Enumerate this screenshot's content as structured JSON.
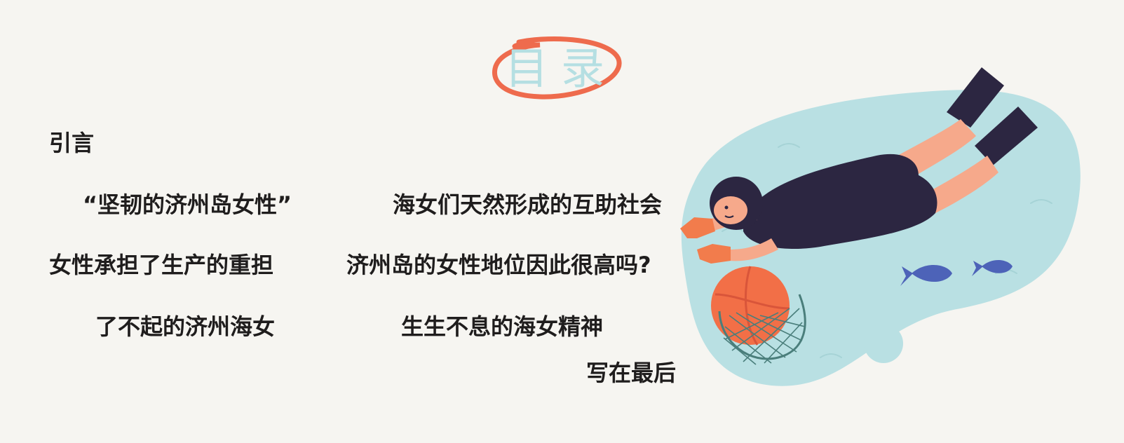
{
  "title": "目录",
  "intro": "引言",
  "items": {
    "tough_women": "“坚韧的济州岛女性”",
    "mutual_aid": "海女们天然形成的互助社会",
    "burden": "女性承担了生产的重担",
    "status_question": "济州岛的女性地位因此很高吗?",
    "amazing": "了不起的济州海女",
    "spirit": "生生不息的海女精神",
    "afterword": "写在最后"
  },
  "colors": {
    "background": "#f6f5f1",
    "title": "#b5dfe2",
    "ring": "#ee6b4d",
    "text": "#1f1d1d",
    "water": "#b9e0e3",
    "suit": "#2c2641",
    "skin": "#f6a98b",
    "glove": "#f27c4c",
    "fish": "#4d63b8"
  },
  "illustration": "haenyeo-diver-illustration"
}
